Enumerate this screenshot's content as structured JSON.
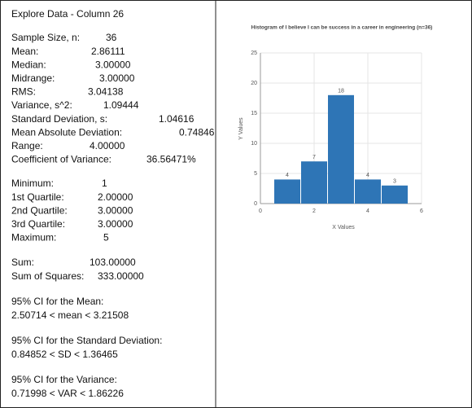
{
  "panel": {
    "title": "Explore Data - Column 26",
    "groups": [
      [
        {
          "label": "Sample Size, n:",
          "value": "36"
        },
        {
          "label": "Mean:",
          "value": "2.86111"
        },
        {
          "label": "Median:",
          "value": "3.00000"
        },
        {
          "label": "Midrange:",
          "value": "3.00000"
        },
        {
          "label": "RMS:",
          "value": "3.04138"
        },
        {
          "label": "Variance, s^2:",
          "value": "1.09444"
        },
        {
          "label": "Standard Deviation, s:",
          "value": "1.04616"
        },
        {
          "label": "Mean Absolute Deviation:",
          "value": "0.74846"
        },
        {
          "label": "Range:",
          "value": "4.00000"
        },
        {
          "label": "Coefficient of Variance:",
          "value": "36.56471%"
        }
      ],
      [
        {
          "label": "Minimum:",
          "value": "1"
        },
        {
          "label": "1st Quartile:",
          "value": "2.00000"
        },
        {
          "label": "2nd Quartile:",
          "value": "3.00000"
        },
        {
          "label": "3rd Quartile:",
          "value": "3.00000"
        },
        {
          "label": "Maximum:",
          "value": "5"
        }
      ],
      [
        {
          "label": "Sum:",
          "value": "103.00000"
        },
        {
          "label": "Sum of Squares:",
          "value": "333.00000"
        }
      ]
    ],
    "intervals": [
      {
        "heading": "95% CI for the Mean:",
        "text": "2.50714 < mean < 3.21508"
      },
      {
        "heading": "95% CI for the Standard Deviation:",
        "text": "0.84852 < SD < 1.36465"
      },
      {
        "heading": "95% CI for the Variance:",
        "text": "0.71998 < VAR < 1.86226"
      }
    ]
  },
  "chart_data": {
    "type": "histogram",
    "title": "Histogram of I believe I can be success in a career in engineering (n=36)",
    "x_label": "X Values",
    "y_label": "Y Values",
    "bins": [
      0.5,
      1.5,
      2.5,
      3.5,
      4.5,
      5.5
    ],
    "values": [
      4,
      7,
      18,
      4,
      3
    ],
    "color": "#2e75b6",
    "xlim": [
      0,
      6
    ],
    "xticks": [
      0,
      2,
      4,
      6
    ],
    "ylim": [
      0,
      25
    ],
    "yticks": [
      0,
      5,
      10,
      15,
      20,
      25
    ],
    "grid": true
  }
}
